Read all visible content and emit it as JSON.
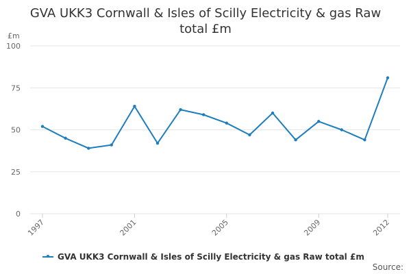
{
  "title_line1": "GVA UKK3 Cornwall & Isles of Scilly Electricity & gas Raw",
  "title_line2": "total £m",
  "source_label": "Source:",
  "colors": {
    "series": "#1c7dbf",
    "grid": "#e6e6e6",
    "axis_text": "#666666"
  },
  "chart_data": {
    "type": "line",
    "title": "GVA UKK3 Cornwall & Isles of Scilly Electricity & gas Raw total £m",
    "ylabel": "£m",
    "xlabel": "",
    "ylim": [
      0,
      100
    ],
    "yticks": [
      0,
      25,
      50,
      75,
      100
    ],
    "xticks": [
      "1997",
      "2001",
      "2005",
      "2009",
      "2012"
    ],
    "x": [
      1997,
      1998,
      1999,
      2000,
      2001,
      2002,
      2003,
      2004,
      2005,
      2006,
      2007,
      2008,
      2009,
      2010,
      2011,
      2012
    ],
    "series": [
      {
        "name": "GVA UKK3 Cornwall & Isles of Scilly Electricity & gas Raw total £m",
        "values": [
          52,
          45,
          39,
          41,
          64,
          42,
          62,
          59,
          54,
          47,
          60,
          44,
          55,
          50,
          44,
          81
        ]
      }
    ],
    "grid": true,
    "legend_position": "bottom-left"
  }
}
